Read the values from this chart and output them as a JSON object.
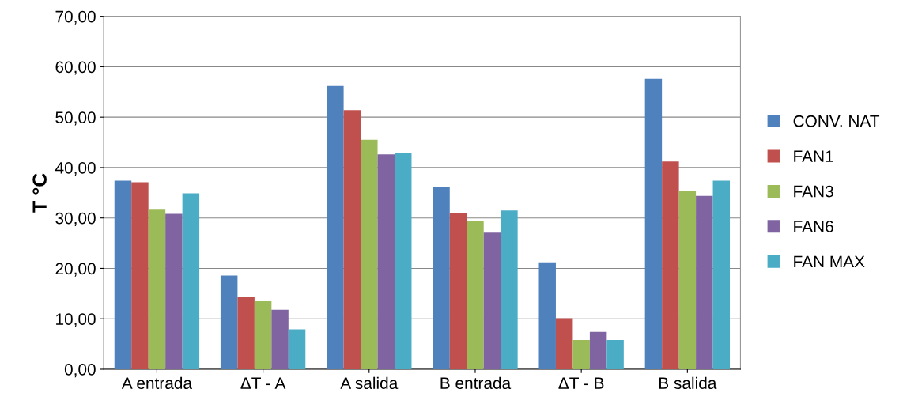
{
  "chart_data": {
    "type": "bar",
    "ylabel": "T °C",
    "categories": [
      "A entrada",
      "ΔT - A",
      "A salida",
      "B entrada",
      "ΔT - B",
      "B salida"
    ],
    "series": [
      {
        "name": "CONV. NAT",
        "color": "#4f81bd",
        "values": [
          37.4,
          18.6,
          56.2,
          36.2,
          21.2,
          57.6
        ]
      },
      {
        "name": "FAN1",
        "color": "#c0504d",
        "values": [
          37.1,
          14.3,
          51.4,
          31.0,
          10.1,
          41.2
        ]
      },
      {
        "name": "FAN3",
        "color": "#9bbb59",
        "values": [
          31.8,
          13.5,
          45.5,
          29.4,
          5.8,
          35.4
        ]
      },
      {
        "name": "FAN6",
        "color": "#8064a2",
        "values": [
          30.8,
          11.8,
          42.6,
          27.1,
          7.4,
          34.4
        ]
      },
      {
        "name": "FAN MAX",
        "color": "#4bacc6",
        "values": [
          34.9,
          7.9,
          42.9,
          31.5,
          5.8,
          37.4
        ]
      }
    ],
    "ylim": [
      0,
      70
    ],
    "yticks": [
      {
        "value": 0,
        "label": "0,00"
      },
      {
        "value": 10,
        "label": "10,00"
      },
      {
        "value": 20,
        "label": "20,00"
      },
      {
        "value": 30,
        "label": "30,00"
      },
      {
        "value": 40,
        "label": "40,00"
      },
      {
        "value": 50,
        "label": "50,00"
      },
      {
        "value": 60,
        "label": "60,00"
      },
      {
        "value": 70,
        "label": "70,00"
      }
    ],
    "grid": "y",
    "legend": "right"
  }
}
